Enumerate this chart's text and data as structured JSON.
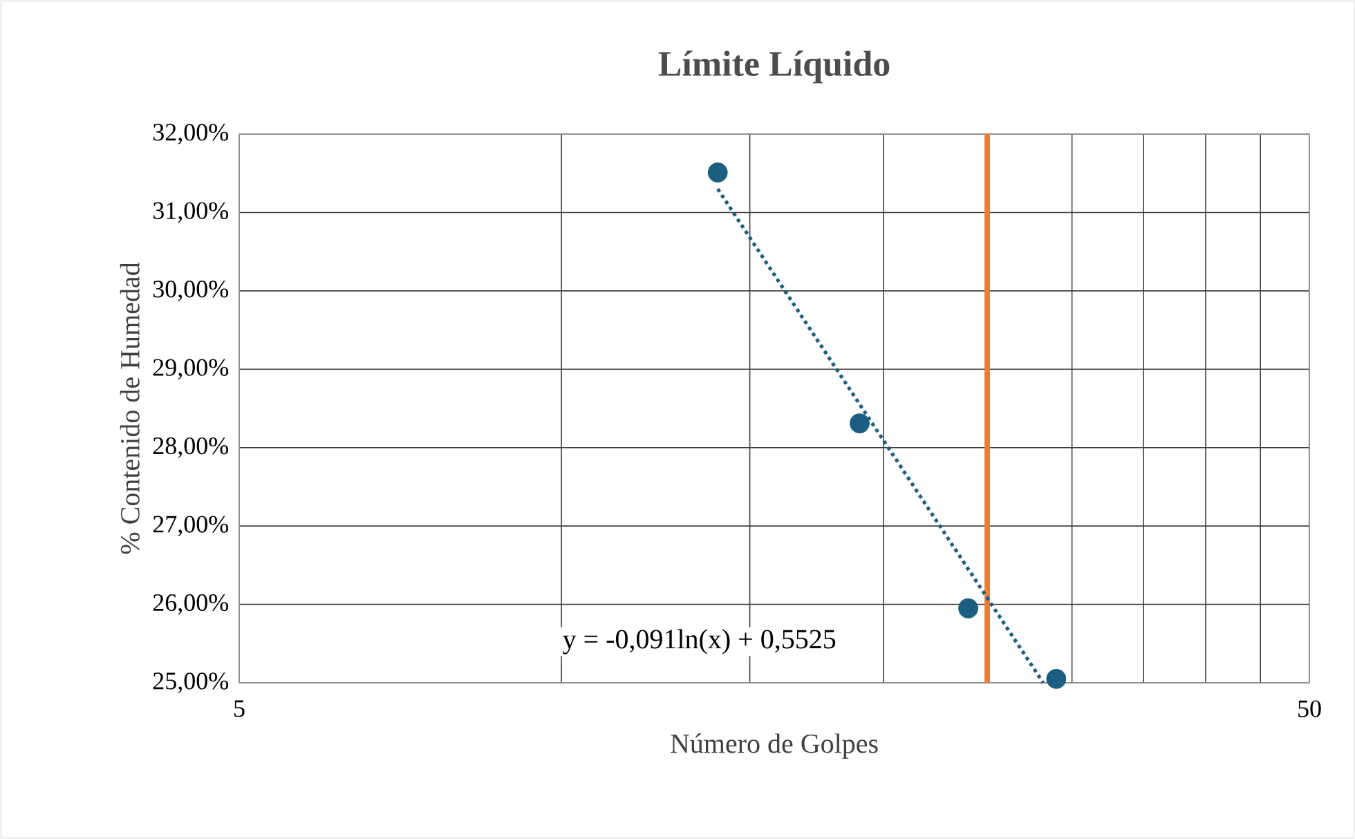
{
  "chart_data": {
    "type": "scatter",
    "title": "Límite Líquido",
    "xlabel": "Número de Golpes",
    "ylabel": "% Contenido de Humedad",
    "log": "x",
    "grid": true,
    "xlim": [
      5,
      50
    ],
    "xticks": [
      5,
      {
        "value": 10,
        "label": null
      },
      {
        "value": 15,
        "label": null
      },
      {
        "value": 20,
        "label": null
      },
      {
        "value": 25,
        "label": null
      },
      {
        "value": 30,
        "label": null
      },
      {
        "value": 35,
        "label": null
      },
      {
        "value": 40,
        "label": null
      },
      {
        "value": 45,
        "label": null
      },
      50
    ],
    "ylim": [
      25,
      32
    ],
    "yticks": [
      {
        "value": 25,
        "label": "25,00%"
      },
      {
        "value": 26,
        "label": "26,00%"
      },
      {
        "value": 27,
        "label": "27,00%"
      },
      {
        "value": 28,
        "label": "28,00%"
      },
      {
        "value": 29,
        "label": "29,00%"
      },
      {
        "value": 30,
        "label": "30,00%"
      },
      {
        "value": 31,
        "label": "31,00%"
      },
      {
        "value": 32,
        "label": "32,00%"
      }
    ],
    "series": [
      {
        "color": "#1b5e82",
        "marker": "circle",
        "x": [
          14,
          19,
          24,
          29
        ],
        "values": [
          31.51,
          28.31,
          25.95,
          25.05
        ]
      },
      {
        "type": "line",
        "color": "#1b5e82",
        "marker": "none",
        "line_style": "dotted",
        "x": [
          14,
          28.2
        ],
        "values": [
          31.3,
          25.0
        ]
      }
    ],
    "ref_lines": [
      {
        "axis": "x",
        "value": 25,
        "color": "#ed7d31"
      }
    ],
    "annotations": [
      "y = -0,091ln(x) + 0,5525"
    ]
  }
}
